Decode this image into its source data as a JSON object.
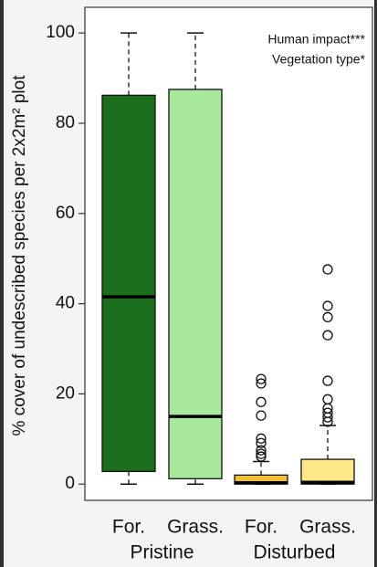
{
  "chart_data": {
    "type": "box",
    "y_label": "% cover of undescribed species per 2x2m² plot",
    "annotations": [
      "Human impact***",
      "Vegetation type*"
    ],
    "categories": [
      "For.",
      "Grass.",
      "For.",
      "Grass."
    ],
    "groups": [
      "Pristine",
      "Disturbed"
    ],
    "boxes": [
      {
        "min": 0,
        "q1": 2.8,
        "median": 41.5,
        "q3": 86.2,
        "max": 100,
        "outliers": [],
        "color": "#1b6e1b"
      },
      {
        "min": 0,
        "q1": 1.2,
        "median": 15,
        "q3": 87.5,
        "max": 100,
        "outliers": [],
        "color": "#a8e89a"
      },
      {
        "min": 0,
        "q1": 0,
        "median": 0.3,
        "q3": 2,
        "max": 5,
        "outliers": [
          23.3,
          22.3,
          18.2,
          15.2,
          10.1,
          9.1,
          7.5,
          6.7,
          6.1
        ],
        "color": "#f2c12e"
      },
      {
        "min": 0,
        "q1": 0,
        "median": 0.4,
        "q3": 5.5,
        "max": 13,
        "outliers": [
          47.6,
          39.5,
          37,
          33,
          22.9,
          18.8,
          16.8,
          15.8,
          14.8,
          13.8
        ],
        "color": "#fde98a"
      }
    ],
    "ylim": [
      -3.6,
      105.7
    ],
    "yticks": [
      0,
      20,
      40,
      60,
      80,
      100
    ]
  }
}
